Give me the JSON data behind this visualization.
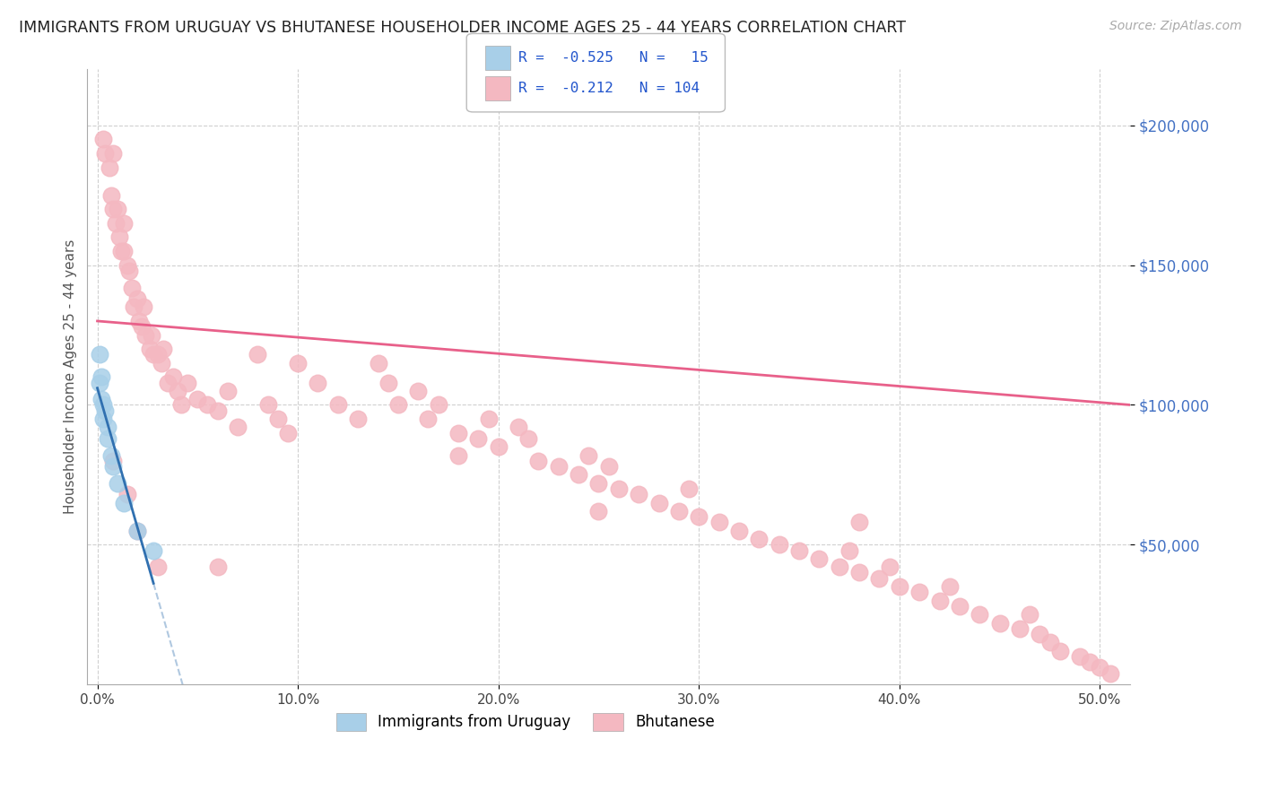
{
  "title": "IMMIGRANTS FROM URUGUAY VS BHUTANESE HOUSEHOLDER INCOME AGES 25 - 44 YEARS CORRELATION CHART",
  "source": "Source: ZipAtlas.com",
  "ylabel": "Householder Income Ages 25 - 44 years",
  "ytick_values": [
    50000,
    100000,
    150000,
    200000
  ],
  "xlim": [
    -0.005,
    0.515
  ],
  "ylim": [
    0,
    220000
  ],
  "legend_r1": "-0.525",
  "legend_n1": "15",
  "legend_r2": "-0.212",
  "legend_n2": "104",
  "color_uruguay": "#a8cfe8",
  "color_bhutanese": "#f4b8c1",
  "color_uruguay_line": "#3070b0",
  "color_bhutanese_line": "#e8608a",
  "color_extrapolation": "#b0c8e0",
  "background": "#ffffff",
  "title_color": "#222222",
  "axis_label_color": "#555555",
  "ytick_color": "#4472c4",
  "source_color": "#aaaaaa",
  "uruguay_x": [
    0.001,
    0.001,
    0.002,
    0.002,
    0.003,
    0.003,
    0.004,
    0.005,
    0.005,
    0.007,
    0.008,
    0.01,
    0.013,
    0.02,
    0.028
  ],
  "uruguay_y": [
    118000,
    108000,
    110000,
    102000,
    100000,
    95000,
    98000,
    92000,
    88000,
    82000,
    78000,
    72000,
    65000,
    55000,
    48000
  ],
  "bhutanese_x": [
    0.003,
    0.004,
    0.006,
    0.007,
    0.008,
    0.008,
    0.009,
    0.01,
    0.011,
    0.012,
    0.013,
    0.013,
    0.015,
    0.016,
    0.017,
    0.018,
    0.02,
    0.021,
    0.022,
    0.023,
    0.024,
    0.026,
    0.027,
    0.028,
    0.03,
    0.032,
    0.033,
    0.035,
    0.038,
    0.04,
    0.042,
    0.045,
    0.05,
    0.055,
    0.06,
    0.065,
    0.07,
    0.08,
    0.085,
    0.09,
    0.095,
    0.1,
    0.11,
    0.12,
    0.13,
    0.14,
    0.145,
    0.15,
    0.16,
    0.165,
    0.17,
    0.18,
    0.19,
    0.195,
    0.2,
    0.21,
    0.215,
    0.22,
    0.23,
    0.24,
    0.245,
    0.25,
    0.255,
    0.26,
    0.27,
    0.28,
    0.29,
    0.295,
    0.3,
    0.31,
    0.32,
    0.33,
    0.34,
    0.35,
    0.36,
    0.37,
    0.375,
    0.38,
    0.39,
    0.395,
    0.4,
    0.41,
    0.42,
    0.425,
    0.43,
    0.44,
    0.45,
    0.46,
    0.465,
    0.47,
    0.475,
    0.48,
    0.49,
    0.495,
    0.5,
    0.505,
    0.008,
    0.015,
    0.02,
    0.03,
    0.06,
    0.18,
    0.25,
    0.38
  ],
  "bhutanese_y": [
    195000,
    190000,
    185000,
    175000,
    170000,
    190000,
    165000,
    170000,
    160000,
    155000,
    165000,
    155000,
    150000,
    148000,
    142000,
    135000,
    138000,
    130000,
    128000,
    135000,
    125000,
    120000,
    125000,
    118000,
    118000,
    115000,
    120000,
    108000,
    110000,
    105000,
    100000,
    108000,
    102000,
    100000,
    98000,
    105000,
    92000,
    118000,
    100000,
    95000,
    90000,
    115000,
    108000,
    100000,
    95000,
    115000,
    108000,
    100000,
    105000,
    95000,
    100000,
    90000,
    88000,
    95000,
    85000,
    92000,
    88000,
    80000,
    78000,
    75000,
    82000,
    72000,
    78000,
    70000,
    68000,
    65000,
    62000,
    70000,
    60000,
    58000,
    55000,
    52000,
    50000,
    48000,
    45000,
    42000,
    48000,
    40000,
    38000,
    42000,
    35000,
    33000,
    30000,
    35000,
    28000,
    25000,
    22000,
    20000,
    25000,
    18000,
    15000,
    12000,
    10000,
    8000,
    6000,
    4000,
    80000,
    68000,
    55000,
    42000,
    42000,
    82000,
    62000,
    58000
  ]
}
